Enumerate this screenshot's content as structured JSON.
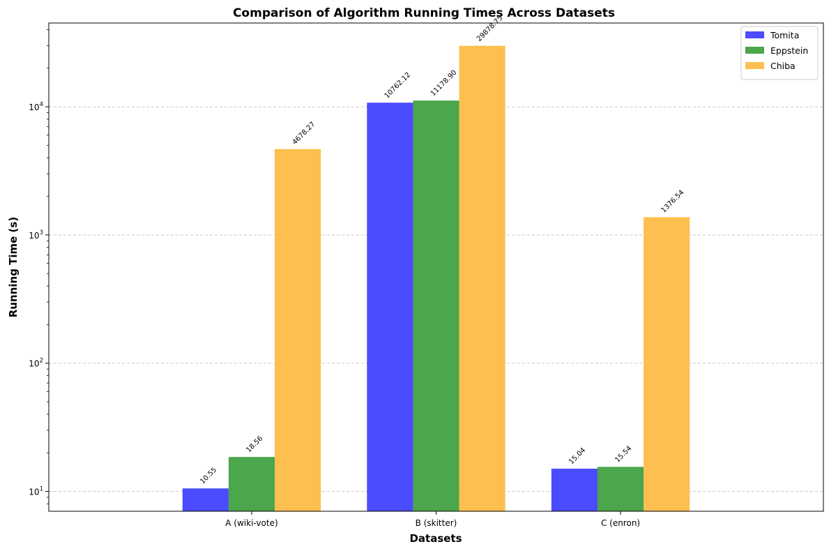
{
  "chart_data": {
    "type": "bar",
    "title": "Comparison of Algorithm Running Times Across Datasets",
    "xlabel": "Datasets",
    "ylabel": "Running Time (s)",
    "yscale": "log",
    "ylim": [
      7,
      45000
    ],
    "yticks": [
      {
        "value": 10,
        "base": "10",
        "exp": "1"
      },
      {
        "value": 100,
        "base": "10",
        "exp": "2"
      },
      {
        "value": 1000,
        "base": "10",
        "exp": "3"
      },
      {
        "value": 10000,
        "base": "10",
        "exp": "4"
      }
    ],
    "categories": [
      "A (wiki-vote)",
      "B (skitter)",
      "C (enron)"
    ],
    "series": [
      {
        "name": "Tomita",
        "color": "#4b4bff",
        "values": [
          10.55,
          10762.12,
          15.04
        ],
        "labels": [
          "10.55",
          "10762.12",
          "15.04"
        ]
      },
      {
        "name": "Eppstein",
        "color": "#4ca64c",
        "values": [
          18.56,
          11178.9,
          15.54
        ],
        "labels": [
          "18.56",
          "11178.90",
          "15.54"
        ]
      },
      {
        "name": "Chiba",
        "color": "#fdbf4f",
        "values": [
          4678.27,
          29878.75,
          1376.54
        ],
        "labels": [
          "4678.27",
          "29878.75",
          "1376.54"
        ]
      }
    ],
    "grid": "y-dashed",
    "legend_position": "top-right"
  }
}
